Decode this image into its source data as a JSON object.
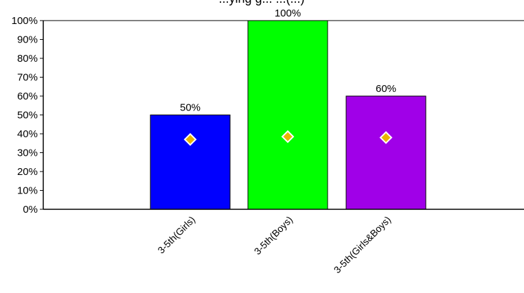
{
  "chart_data": {
    "type": "bar",
    "title": "...ying g... ...(...)",
    "xlabel": "",
    "ylabel": "",
    "categories": [
      "3-5th(Girls)",
      "3-5th(Boys)",
      "3-5th(Girls&Boys)"
    ],
    "values": [
      50,
      100,
      60
    ],
    "data_labels": [
      "50%",
      "100%",
      "60%"
    ],
    "bar_colors": [
      "#0000ff",
      "#00ff00",
      "#a000e8"
    ],
    "marker_values": [
      37,
      38.5,
      38
    ],
    "marker_color": "#e8b400",
    "ylim": [
      0,
      100
    ],
    "y_ticks": [
      0,
      10,
      20,
      30,
      40,
      50,
      60,
      70,
      80,
      90,
      100
    ],
    "y_tick_labels": [
      "0%",
      "10%",
      "20%",
      "30%",
      "40%",
      "50%",
      "60%",
      "70%",
      "80%",
      "90%",
      "100%"
    ],
    "grid": false,
    "legend": "none"
  }
}
